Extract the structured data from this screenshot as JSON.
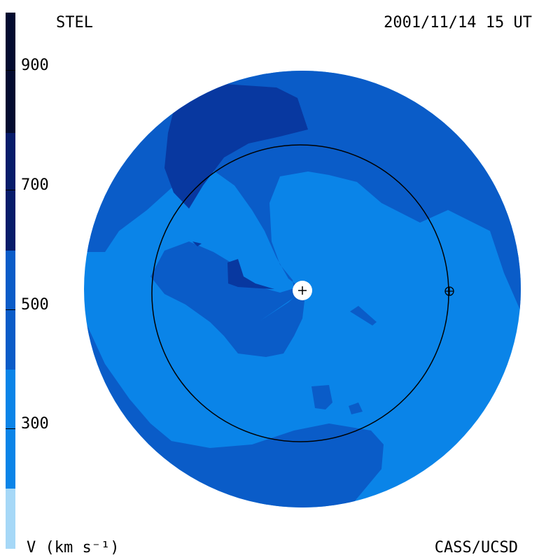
{
  "header": {
    "source": "STEL",
    "timestamp": "2001/11/14 15 UT"
  },
  "footer": {
    "unit": "V (km s⁻¹)",
    "credit": "CASS/UCSD"
  },
  "colorbar": {
    "ticks": [
      "900",
      "700",
      "500",
      "300"
    ],
    "colors": [
      "#a6d8f7",
      "#4db2f5",
      "#0a84e8",
      "#0a5cc8",
      "#0838a0",
      "#061c6a",
      "#030b30"
    ],
    "levels_km_s": [
      200,
      300,
      400,
      500,
      600,
      700,
      800,
      900,
      1000
    ]
  },
  "map": {
    "palette": {
      "slow": "#0a84e8",
      "medium": "#0a5cc8",
      "fast": "#0838a0",
      "center": "#ffffff",
      "orbit": "#000000"
    },
    "markers": [
      "sun-marker",
      "earth-marker"
    ]
  }
}
